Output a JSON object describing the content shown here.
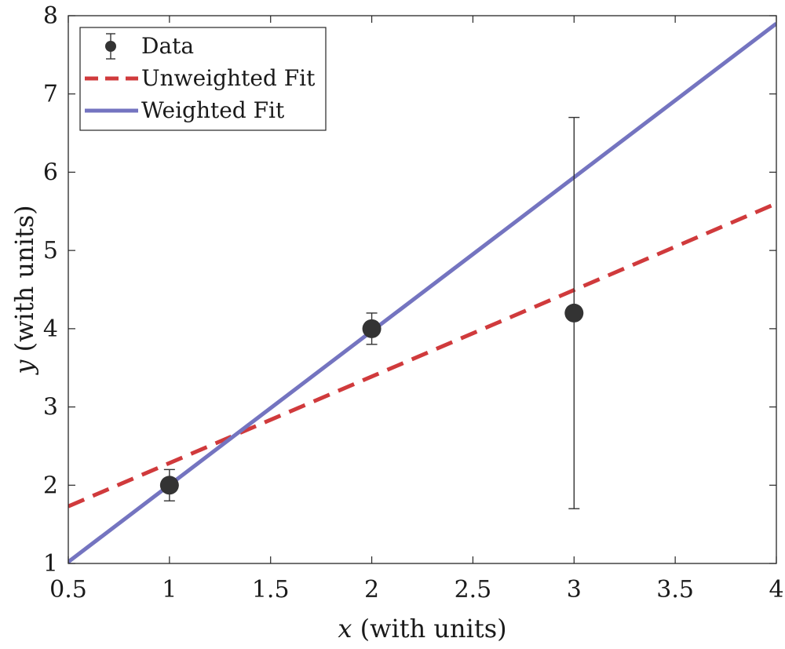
{
  "chart_data": {
    "type": "scatter",
    "title": "",
    "xlabel": {
      "var": "x",
      "rest": " (with units)"
    },
    "ylabel": {
      "var": "y",
      "rest": " (with units)"
    },
    "xlim": [
      0.5,
      4
    ],
    "ylim": [
      1,
      8
    ],
    "xticks": [
      0.5,
      1,
      1.5,
      2,
      2.5,
      3,
      3.5,
      4
    ],
    "yticks": [
      1,
      2,
      3,
      4,
      5,
      6,
      7,
      8
    ],
    "xtick_labels": [
      "0.5",
      "1",
      "1.5",
      "2",
      "2.5",
      "3",
      "3.5",
      "4"
    ],
    "ytick_labels": [
      "1",
      "2",
      "3",
      "4",
      "5",
      "6",
      "7",
      "8"
    ],
    "grid": false,
    "legend_position": "top-left",
    "series": [
      {
        "name": "Data",
        "kind": "errorbar",
        "color": "#333333",
        "x": [
          1,
          2,
          3
        ],
        "y": [
          2,
          4,
          4.2
        ],
        "err": [
          0.2,
          0.2,
          2.5
        ]
      },
      {
        "name": "Unweighted Fit",
        "kind": "line",
        "style": "dashed",
        "color": "#d03a3c",
        "x": [
          0.5,
          4
        ],
        "y": [
          1.73,
          5.6
        ]
      },
      {
        "name": "Weighted Fit",
        "kind": "line",
        "style": "solid",
        "color": "#7474c0",
        "x": [
          0.5,
          4
        ],
        "y": [
          1.02,
          7.9
        ]
      }
    ]
  }
}
